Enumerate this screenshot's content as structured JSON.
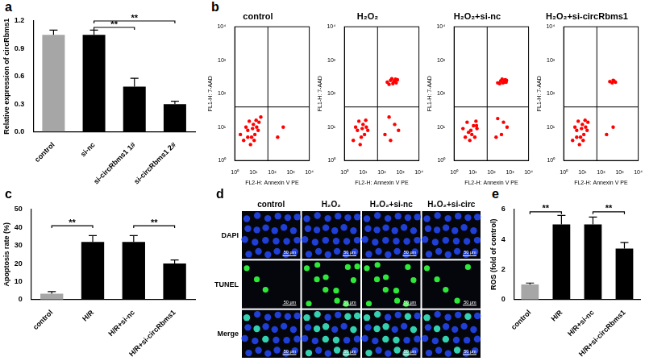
{
  "chart_data": [
    {
      "panel": "a",
      "type": "bar",
      "y_label": "Relative expression of circRbms1",
      "categories": [
        "control",
        "si-nc",
        "si-circRbms1 1#",
        "si-circRbms1 2#"
      ],
      "values": [
        1.05,
        1.05,
        0.49,
        0.3
      ],
      "errors": [
        0.05,
        0.05,
        0.09,
        0.03
      ],
      "colors": [
        "#a6a6a6",
        "#000000",
        "#000000",
        "#000000"
      ],
      "ylim": [
        0,
        1.2
      ],
      "yticks": [
        {
          "value": 0,
          "label": "0.0"
        },
        0.3,
        0.6,
        0.9,
        1.2
      ],
      "grid": false,
      "annotations": [
        {
          "text": "**",
          "from": "si-nc",
          "to": "si-circRbms1 1#",
          "y": 1.13
        },
        {
          "text": "**",
          "from": "si-nc",
          "to": "si-circRbms1 2#",
          "y": 1.2
        }
      ]
    },
    {
      "panel": "b",
      "type": "scatter",
      "x_label": "FL2-H: Annexin V PE",
      "y_label": "FL1-H: 7-AAD",
      "log": true,
      "xlim": [
        1,
        10000
      ],
      "ylim": [
        1,
        10000
      ],
      "xticks": [
        {
          "value": 1,
          "label": "10⁰"
        },
        {
          "value": 10,
          "label": "10¹"
        },
        {
          "value": 100,
          "label": "10²"
        },
        {
          "value": 1000,
          "label": "10³"
        },
        {
          "value": 10000,
          "label": "10⁴"
        }
      ],
      "yticks": [
        {
          "value": 1,
          "label": "10⁰"
        },
        {
          "value": 10,
          "label": "10¹"
        },
        {
          "value": 100,
          "label": "10²"
        },
        {
          "value": 1000,
          "label": "10³"
        },
        {
          "value": 10000,
          "label": "10⁴"
        }
      ],
      "grid": false,
      "quadrant": {
        "x": 60,
        "y": 40
      },
      "plots": [
        {
          "title": "control",
          "color": "#ff0000",
          "x": [
            3,
            5,
            8,
            10,
            6,
            12,
            15,
            4,
            9,
            7,
            14,
            18,
            5,
            11,
            20,
            2,
            25,
            200,
            400
          ],
          "values": [
            4,
            8,
            5,
            12,
            15,
            6,
            10,
            10,
            9,
            3,
            16,
            8,
            5,
            4,
            14,
            6,
            20,
            5,
            10
          ]
        },
        {
          "title": "H₂O₂",
          "color": "#ff0000",
          "x": [
            3,
            5,
            8,
            10,
            6,
            12,
            15,
            4,
            9,
            7,
            14,
            18,
            150,
            300,
            500,
            250,
            800,
            200,
            300,
            400,
            500,
            600,
            350,
            450,
            700,
            250,
            550
          ],
          "values": [
            4,
            8,
            5,
            12,
            15,
            6,
            10,
            10,
            9,
            3,
            16,
            8,
            6,
            4,
            12,
            20,
            8,
            220,
            250,
            200,
            240,
            210,
            280,
            230,
            260,
            190,
            270
          ]
        },
        {
          "title": "H₂O₂+si-nc",
          "color": "#ff0000",
          "x": [
            4,
            6,
            9,
            11,
            5,
            13,
            16,
            3,
            8,
            7,
            15,
            17,
            180,
            350,
            450,
            220,
            700,
            220,
            320,
            420,
            520,
            620,
            380,
            480,
            650,
            280,
            560
          ],
          "values": [
            5,
            7,
            6,
            11,
            14,
            5,
            11,
            9,
            8,
            4,
            15,
            9,
            5,
            6,
            14,
            18,
            10,
            210,
            240,
            210,
            250,
            220,
            270,
            220,
            250,
            200,
            260
          ]
        },
        {
          "title": "H₂O₂+si-circRbms1",
          "color": "#ff0000",
          "x": [
            3,
            5,
            8,
            10,
            6,
            12,
            15,
            4,
            9,
            7,
            14,
            18,
            5,
            11,
            20,
            200,
            450,
            300,
            450,
            600,
            400,
            500
          ],
          "values": [
            4,
            8,
            5,
            12,
            15,
            6,
            10,
            10,
            9,
            3,
            16,
            8,
            5,
            4,
            14,
            6,
            10,
            230,
            250,
            220,
            210,
            240
          ]
        }
      ]
    },
    {
      "panel": "c",
      "type": "bar",
      "y_label": "Apoptosis rate (%)",
      "categories": [
        "control",
        "H/R",
        "H/R+si-nc",
        "H/R+si-circRbms1"
      ],
      "values": [
        3.2,
        32,
        32,
        20
      ],
      "errors": [
        1.2,
        3.5,
        3.5,
        2
      ],
      "colors": [
        "#a6a6a6",
        "#000000",
        "#000000",
        "#000000"
      ],
      "ylim": [
        0,
        50
      ],
      "yticks": [
        0,
        10,
        20,
        30,
        40,
        50
      ],
      "grid": false,
      "annotations": [
        {
          "text": "**",
          "from": "control",
          "to": "H/R",
          "y": 41
        },
        {
          "text": "**",
          "from": "H/R+si-nc",
          "to": "H/R+si-circRbms1",
          "y": 41
        }
      ]
    },
    {
      "panel": "e",
      "type": "bar",
      "y_label": "ROS (fold of control)",
      "categories": [
        "control",
        "H/R",
        "H/R+si-nc",
        "H/R+si-circRbms1"
      ],
      "values": [
        1.0,
        5.0,
        5.0,
        3.4
      ],
      "errors": [
        0.1,
        0.6,
        0.5,
        0.4
      ],
      "colors": [
        "#a6a6a6",
        "#000000",
        "#000000",
        "#000000"
      ],
      "ylim": [
        0,
        6
      ],
      "yticks": [
        0,
        2,
        4,
        6
      ],
      "grid": false,
      "annotations": [
        {
          "text": "**",
          "from": "control",
          "to": "H/R",
          "y": 5.85
        },
        {
          "text": "**",
          "from": "H/R+si-nc",
          "to": "H/R+si-circRbms1",
          "y": 5.85
        }
      ]
    }
  ],
  "figure_d": {
    "panel": "d",
    "columns": [
      "control",
      "H₂O₂",
      "H₂O₂+si-nc",
      "H₂O₂+si-circ"
    ],
    "rows": [
      "DAPI",
      "TUNEL",
      "Merge"
    ],
    "scale_bar": "50 μm",
    "tunel_cells": [
      3,
      12,
      11,
      5
    ]
  }
}
